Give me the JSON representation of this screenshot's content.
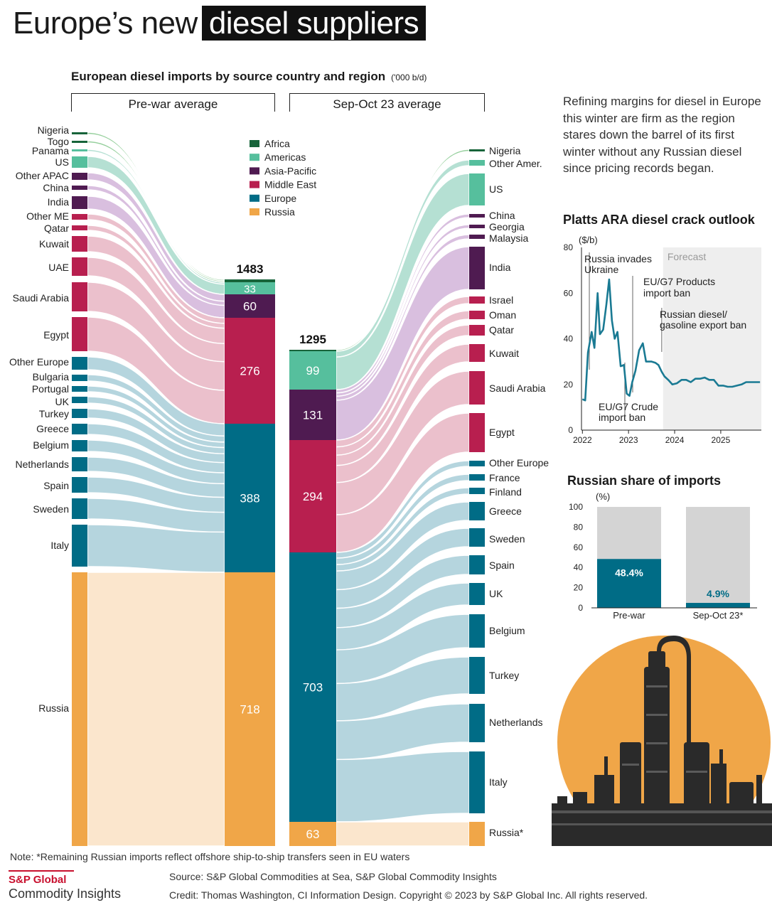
{
  "title": {
    "prefix": "Europe’s new",
    "highlight": "diesel suppliers"
  },
  "main_chart": {
    "subtitle": "European diesel imports by source country and region",
    "unit": "('000 b/d)",
    "left_header": "Pre-war average",
    "right_header": "Sep-Oct 23 average"
  },
  "colors": {
    "Africa": "#17643a",
    "Americas": "#56bf9d",
    "Asia-Pacific": "#4f1b51",
    "Middle East": "#b81f4f",
    "Europe": "#006c86",
    "Russia": "#f0a648"
  },
  "intro_text": "Refining margins for diesel in Europe this winter are firm as the region stares down the barrel of its first winter without any Russian diesel since pricing records began.",
  "crack_chart_title": "Platts ARA diesel crack outlook",
  "share_chart_title": "Russian share of imports",
  "note": "Note: *Remaining Russian imports reflect offshore ship-to-ship transfers seen in EU waters",
  "logo": {
    "line1": "S&P Global",
    "line2": "Commodity Insights"
  },
  "source": "Source: S&P Global Commodities at Sea, S&P Global Commodity Insights",
  "credit": "Credit: Thomas Washington, CI Information Design.  Copyright © 2023 by S&P Global Inc. All rights reserved.",
  "chart_data": [
    {
      "type": "sankey",
      "legend": [
        "Africa",
        "Americas",
        "Asia-Pacific",
        "Middle East",
        "Europe",
        "Russia"
      ],
      "left_countries": [
        {
          "name": "Nigeria",
          "region": "Africa"
        },
        {
          "name": "Togo",
          "region": "Africa"
        },
        {
          "name": "Panama",
          "region": "Americas"
        },
        {
          "name": "US",
          "region": "Americas"
        },
        {
          "name": "Other APAC",
          "region": "Asia-Pacific"
        },
        {
          "name": "China",
          "region": "Asia-Pacific"
        },
        {
          "name": "India",
          "region": "Asia-Pacific"
        },
        {
          "name": "Other ME",
          "region": "Middle East"
        },
        {
          "name": "Qatar",
          "region": "Middle East"
        },
        {
          "name": "Kuwait",
          "region": "Middle East"
        },
        {
          "name": "UAE",
          "region": "Middle East"
        },
        {
          "name": "Saudi Arabia",
          "region": "Middle East"
        },
        {
          "name": "Egypt",
          "region": "Middle East"
        },
        {
          "name": "Other Europe",
          "region": "Europe"
        },
        {
          "name": "Bulgaria",
          "region": "Europe"
        },
        {
          "name": "Portugal",
          "region": "Europe"
        },
        {
          "name": "UK",
          "region": "Europe"
        },
        {
          "name": "Turkey",
          "region": "Europe"
        },
        {
          "name": "Greece",
          "region": "Europe"
        },
        {
          "name": "Belgium",
          "region": "Europe"
        },
        {
          "name": "Netherlands",
          "region": "Europe"
        },
        {
          "name": "Spain",
          "region": "Europe"
        },
        {
          "name": "Sweden",
          "region": "Europe"
        },
        {
          "name": "Italy",
          "region": "Europe"
        },
        {
          "name": "Russia",
          "region": "Russia"
        }
      ],
      "left_regions": [
        {
          "region": "Africa",
          "value": 8,
          "label": ""
        },
        {
          "region": "Americas",
          "value": 33,
          "label": "33"
        },
        {
          "region": "Asia-Pacific",
          "value": 60,
          "label": "60"
        },
        {
          "region": "Middle East",
          "value": 276,
          "label": "276"
        },
        {
          "region": "Europe",
          "value": 388,
          "label": "388"
        },
        {
          "region": "Russia",
          "value": 718,
          "label": "718"
        }
      ],
      "left_total": "1483",
      "right_regions": [
        {
          "region": "Africa",
          "value": 5,
          "label": ""
        },
        {
          "region": "Americas",
          "value": 99,
          "label": "99"
        },
        {
          "region": "Asia-Pacific",
          "value": 131,
          "label": "131"
        },
        {
          "region": "Middle East",
          "value": 294,
          "label": "294"
        },
        {
          "region": "Europe",
          "value": 703,
          "label": "703"
        },
        {
          "region": "Russia",
          "value": 63,
          "label": "63"
        }
      ],
      "right_total": "1295",
      "right_countries": [
        {
          "name": "Nigeria",
          "region": "Africa"
        },
        {
          "name": "Other Amer.",
          "region": "Americas"
        },
        {
          "name": "US",
          "region": "Americas"
        },
        {
          "name": "China",
          "region": "Asia-Pacific"
        },
        {
          "name": "Georgia",
          "region": "Asia-Pacific"
        },
        {
          "name": "Malaysia",
          "region": "Asia-Pacific"
        },
        {
          "name": "India",
          "region": "Asia-Pacific"
        },
        {
          "name": "Israel",
          "region": "Middle East"
        },
        {
          "name": "Oman",
          "region": "Middle East"
        },
        {
          "name": "Qatar",
          "region": "Middle East"
        },
        {
          "name": "Kuwait",
          "region": "Middle East"
        },
        {
          "name": "Saudi Arabia",
          "region": "Middle East"
        },
        {
          "name": "Egypt",
          "region": "Middle East"
        },
        {
          "name": "Other Europe",
          "region": "Europe"
        },
        {
          "name": "France",
          "region": "Europe"
        },
        {
          "name": "Finland",
          "region": "Europe"
        },
        {
          "name": "Greece",
          "region": "Europe"
        },
        {
          "name": "Sweden",
          "region": "Europe"
        },
        {
          "name": "Spain",
          "region": "Europe"
        },
        {
          "name": "UK",
          "region": "Europe"
        },
        {
          "name": "Belgium",
          "region": "Europe"
        },
        {
          "name": "Turkey",
          "region": "Europe"
        },
        {
          "name": "Netherlands",
          "region": "Europe"
        },
        {
          "name": "Italy",
          "region": "Europe"
        },
        {
          "name": "Russia*",
          "region": "Russia"
        }
      ]
    },
    {
      "type": "line",
      "title": "Platts ARA diesel crack outlook",
      "ylabel": "($/b)",
      "ylim": [
        0,
        80
      ],
      "yticks": [
        "0",
        "20",
        "40",
        "60",
        "80"
      ],
      "xticks": [
        "2022",
        "2023",
        "2024",
        "2025"
      ],
      "forecast_label": "Forecast",
      "annotations": [
        {
          "text": "Russia invades Ukraine",
          "x": 2022.15
        },
        {
          "text": "EU/G7 Crude import ban",
          "x": 2022.92
        },
        {
          "text": "EU/G7 Products import ban",
          "x": 2023.09
        },
        {
          "text": "Russian diesel/ gasoline export ban",
          "x": 2023.72
        }
      ],
      "forecast_start": 2023.75,
      "series": [
        {
          "x": [
            2022.0,
            2022.06,
            2022.12,
            2022.2,
            2022.26,
            2022.33,
            2022.38,
            2022.45,
            2022.52,
            2022.58,
            2022.64,
            2022.7,
            2022.76,
            2022.83,
            2022.9,
            2022.96,
            2023.02,
            2023.08,
            2023.15,
            2023.23,
            2023.31,
            2023.38,
            2023.44,
            2023.5,
            2023.58,
            2023.65,
            2023.72,
            2023.78,
            2023.86,
            2023.95,
            2024.05,
            2024.15,
            2024.25,
            2024.35,
            2024.45,
            2024.55,
            2024.65,
            2024.75,
            2024.85,
            2024.95,
            2025.05,
            2025.15,
            2025.25,
            2025.35,
            2025.45,
            2025.55,
            2025.65,
            2025.75,
            2025.85
          ],
          "values": [
            13.5,
            13,
            34,
            43,
            36,
            60,
            42,
            44,
            55,
            66,
            48,
            40,
            43,
            28,
            28.5,
            16,
            15,
            21,
            26,
            35,
            38,
            30,
            30,
            30,
            29.5,
            28.5,
            25.5,
            23.5,
            22,
            20,
            20.5,
            22,
            22,
            21,
            22.5,
            22.5,
            23,
            22,
            22,
            19.5,
            19.5,
            19,
            19,
            19.5,
            20,
            21,
            21,
            21,
            21
          ]
        }
      ]
    },
    {
      "type": "bar",
      "title": "Russian share of imports",
      "ylabel": "(%)",
      "ylim": [
        0,
        100
      ],
      "yticks": [
        "0",
        "20",
        "40",
        "60",
        "80",
        "100"
      ],
      "categories": [
        "Pre-war",
        "Sep-Oct 23*"
      ],
      "values": [
        48.4,
        4.9
      ],
      "labels": [
        "48.4%",
        "4.9%"
      ]
    }
  ]
}
